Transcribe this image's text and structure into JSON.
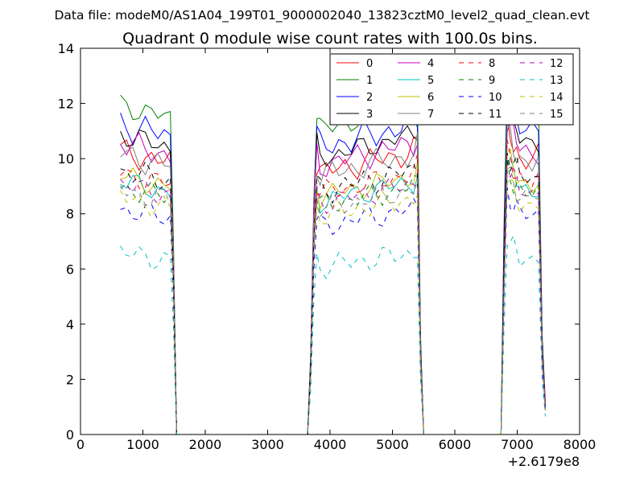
{
  "suptitle": "Data file: modeM0/AS1A04_199T01_9000002040_13823cztM0_level2_quad_clean.evt",
  "chart_data": {
    "type": "line",
    "title": "Quadrant 0 module wise count rates with 100.0s bins.",
    "xlabel": "",
    "ylabel": "",
    "x_offset_label": "+2.6179e8",
    "xlim": [
      0,
      8000
    ],
    "ylim": [
      0,
      14
    ],
    "xticks": [
      0,
      1000,
      2000,
      3000,
      4000,
      5000,
      6000,
      7000,
      8000
    ],
    "yticks": [
      0,
      2,
      4,
      6,
      8,
      10,
      12,
      14
    ],
    "grid": false,
    "legend_position": "top-right",
    "legend_columns": 4,
    "series": [
      {
        "name": "0",
        "color": "#ff0000",
        "dash": "solid",
        "base": 10.3,
        "jitter": 0.35,
        "phase": 0.0
      },
      {
        "name": "1",
        "color": "#008000",
        "dash": "solid",
        "base": 12.0,
        "jitter": 0.3,
        "phase": 0.7
      },
      {
        "name": "2",
        "color": "#0000ff",
        "dash": "solid",
        "base": 11.3,
        "jitter": 0.4,
        "phase": 1.3
      },
      {
        "name": "3",
        "color": "#000000",
        "dash": "solid",
        "base": 10.9,
        "jitter": 0.3,
        "phase": 2.1
      },
      {
        "name": "4",
        "color": "#bf00bf",
        "dash": "solid",
        "base": 10.6,
        "jitter": 0.35,
        "phase": 2.9
      },
      {
        "name": "5",
        "color": "#00bfbf",
        "dash": "solid",
        "base": 9.2,
        "jitter": 0.3,
        "phase": 3.4
      },
      {
        "name": "6",
        "color": "#bfbf00",
        "dash": "solid",
        "base": 9.4,
        "jitter": 0.3,
        "phase": 4.0
      },
      {
        "name": "7",
        "color": "#808080",
        "dash": "solid",
        "base": 10.2,
        "jitter": 0.35,
        "phase": 4.6
      },
      {
        "name": "8",
        "color": "#ff0000",
        "dash": "dashed",
        "base": 9.5,
        "jitter": 0.3,
        "phase": 5.1
      },
      {
        "name": "9",
        "color": "#008000",
        "dash": "dashed",
        "base": 9.0,
        "jitter": 0.3,
        "phase": 5.9
      },
      {
        "name": "10",
        "color": "#0000ff",
        "dash": "dashed",
        "base": 8.2,
        "jitter": 0.3,
        "phase": 6.4
      },
      {
        "name": "11",
        "color": "#000000",
        "dash": "dashed",
        "base": 9.6,
        "jitter": 0.35,
        "phase": 7.0
      },
      {
        "name": "12",
        "color": "#bf00bf",
        "dash": "dashed",
        "base": 9.1,
        "jitter": 0.3,
        "phase": 7.7
      },
      {
        "name": "13",
        "color": "#00bfbf",
        "dash": "dashed",
        "base": 6.6,
        "jitter": 0.3,
        "phase": 8.3
      },
      {
        "name": "14",
        "color": "#bfbf00",
        "dash": "dashed",
        "base": 8.6,
        "jitter": 0.3,
        "phase": 8.9
      },
      {
        "name": "15",
        "color": "#808080",
        "dash": "dashed",
        "base": 8.9,
        "jitter": 0.3,
        "phase": 9.6
      }
    ],
    "x": [
      640,
      740,
      840,
      940,
      1040,
      1140,
      1240,
      1340,
      1440,
      1490,
      1540,
      1590,
      1640,
      1690,
      1740,
      3640,
      3690,
      3740,
      3790,
      3840,
      3940,
      4040,
      4140,
      4240,
      4340,
      4440,
      4540,
      4640,
      4740,
      4840,
      4940,
      5040,
      5140,
      5240,
      5340,
      5400,
      5450,
      5500,
      5550,
      5640,
      6740,
      6790,
      6840,
      6890,
      6940,
      6990,
      7040,
      7140,
      7240,
      7340,
      7400,
      7450
    ],
    "profile": [
      1.0,
      0.99,
      0.985,
      0.98,
      0.975,
      0.97,
      0.965,
      0.96,
      0.955,
      0.6,
      0.0,
      0.0,
      0.0,
      0.0,
      0.0,
      0.0,
      0.25,
      0.75,
      0.96,
      0.92,
      0.925,
      0.93,
      0.935,
      0.94,
      0.945,
      0.95,
      0.955,
      0.96,
      0.965,
      0.97,
      0.975,
      0.98,
      0.985,
      0.99,
      1.0,
      1.02,
      0.3,
      0.0,
      0.0,
      0.0,
      0.0,
      0.6,
      1.08,
      1.05,
      1.02,
      1.0,
      0.98,
      0.97,
      0.96,
      0.97,
      0.3,
      0.1
    ]
  }
}
